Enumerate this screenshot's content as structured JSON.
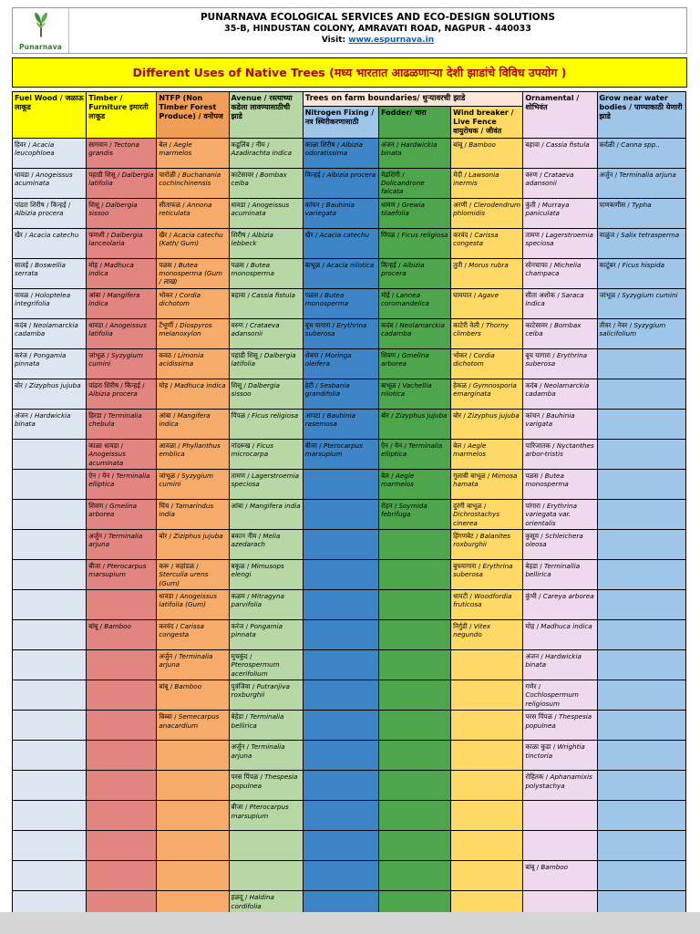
{
  "page": {
    "org_line1": "PUNARNAVA ECOLOGICAL SERVICES AND ECO-DESIGN SOLUTIONS",
    "org_line2": "35-B, HINDUSTAN COLONY, AMRAVATI ROAD, NAGPUR - 440033",
    "visit_label": "Visit: ",
    "visit_url": "www.espurnava.in",
    "logo_text": "Punarnava",
    "title": "Different Uses of Native Trees (मध्य भारतात आढळणाऱ्या देशी झाडांचे विविध उपयोग )"
  },
  "colors": {
    "title_bg": "#ffff00",
    "title_text": "#b00000",
    "link_blue": "#0563c1",
    "logo_green": "#2f7d32",
    "farm_group_bg": "#fbe5d6"
  },
  "table": {
    "farm_group_label": "Trees on farm boundaries/ धुऱ्यावरची झाडे",
    "farm_group_bg": "#fbe5d6",
    "columns": [
      {
        "key": "fuel-wood",
        "label": "Fuel Wood / जळाऊ लाकूड",
        "header_bg": "#ffff00",
        "body_bg": "#dde6f0"
      },
      {
        "key": "timber",
        "label": "Timber / Furniture इमारती लाकूड",
        "header_bg": "#ffff00",
        "body_bg": "#e28580"
      },
      {
        "key": "ntfp",
        "label": "NTFP (Non Timber Forest Produce) / वनोपज",
        "header_bg": "#f09d58",
        "body_bg": "#f6ab6b"
      },
      {
        "key": "avenue",
        "label": "Avenue / रस्त्याच्या कडेला लावण्यासाठीची झाडे",
        "header_bg": "#b7d7a4",
        "body_bg": "#b7d7a4"
      },
      {
        "key": "nitrogen-fixing",
        "label": "Nitrogen Fixing / नत्र स्थिरीकरणासाठी",
        "header_bg": "#9fc5e8",
        "body_bg": "#3d85c6",
        "group": "farm"
      },
      {
        "key": "fodder",
        "label": "Fodder/ चारा",
        "header_bg": "#4da64b",
        "body_bg": "#4da64b",
        "group": "farm"
      },
      {
        "key": "wind-breaker",
        "label": "Wind breaker / Live Fence वायुरोधक / जीवंत",
        "header_bg": "#ffd966",
        "body_bg": "#ffd966",
        "group": "farm"
      },
      {
        "key": "ornamental",
        "label": "Ornamental / शोभिवंत",
        "header_bg": "#efd9ed",
        "body_bg": "#efd9ed"
      },
      {
        "key": "water-bodies",
        "label": "Grow near water bodies / पाण्याकाठी येणारी झाडे",
        "header_bg": "#9fc5e8",
        "body_bg": "#9fc5e8"
      }
    ],
    "rows": [
      [
        [
          "हिवर",
          "Acacia leucophloea"
        ],
        [
          "सागवान",
          "Tectona grandis"
        ],
        [
          "बेल",
          "Aegle marmelos"
        ],
        [
          "कडूलिंब / नीम",
          "Azadirachta indica"
        ],
        [
          "काळा शिरीष",
          "Albizia odoratissima"
        ],
        [
          "अंजन",
          "Hardwickia binata"
        ],
        [
          "बांबू",
          "Bamboo"
        ],
        [
          "बहावा",
          "Cassia fistula"
        ],
        [
          "कर्दळी",
          "Canna spp.."
        ]
      ],
      [
        [
          "धावडा",
          "Anogeissus acuminata"
        ],
        [
          "पहाडी शिसू",
          "Dalbergia latifolia"
        ],
        [
          "चारोळी",
          "Buchanania cochinchinensis"
        ],
        [
          "काटेसावर",
          "Bombax ceiba"
        ],
        [
          "किन्हई",
          "Albizia procera"
        ],
        [
          "मेढशिंगी",
          "Dolicandrone falcata"
        ],
        [
          "मेंदी",
          "Lawsonia inermis"
        ],
        [
          "वरुण",
          "Crataeva adansonii"
        ],
        [
          "अर्जुन",
          "Terminalia arjuna"
        ]
      ],
      [
        [
          "पांढरा शिरीष / किन्हई",
          "Albizia procera"
        ],
        [
          "शिसू",
          "Dalbergia sissoo"
        ],
        [
          "सीताफळ",
          "Annona reticulata"
        ],
        [
          "धावडा",
          "Anogeissus acuminata"
        ],
        [
          "कांचन",
          "Bauhinia variegata"
        ],
        [
          "धामण",
          "Grewia tilaefolia"
        ],
        [
          "अरणी",
          "Clerodendrum phlomidis"
        ],
        [
          "कुंती",
          "Murraya paniculata"
        ],
        [
          "पाणकणीस",
          "Typha"
        ]
      ],
      [
        [
          "खैर",
          "Acacia catechu"
        ],
        [
          "फणशी",
          "Dalbergia lanceolaria"
        ],
        [
          "खैर",
          "Acacia catechu (Kath/ Gum)"
        ],
        [
          "शिरीष",
          "Albizia lebbeck"
        ],
        [
          "खैर",
          "Acacia catechu"
        ],
        [
          "पिंपळ",
          "Ficus religiosa"
        ],
        [
          "करवंद",
          "Carissa congesta"
        ],
        [
          "तामण",
          "Lagerstroemia speciosa"
        ],
        [
          "वाळुंज",
          "Salix tetrasperma"
        ]
      ],
      [
        [
          "सालई",
          "Boswellia serrata"
        ],
        [
          "मोह",
          "Madhuca indica"
        ],
        [
          "पळस",
          "Butea monosperma (Gum / लाख)"
        ],
        [
          "पळस",
          "Butea monosperma"
        ],
        [
          "बाभूळ",
          "Acacia nilotica"
        ],
        [
          "किन्हई",
          "Albizia procera"
        ],
        [
          "तुती",
          "Morus rubra"
        ],
        [
          "सोनचाफा",
          "Michelia champaca"
        ],
        [
          "काटूंबर",
          "Ficus hispida"
        ]
      ],
      [
        [
          "वावळ",
          "Holoptelea integrifolia"
        ],
        [
          "आंबा",
          "Mangifera indica"
        ],
        [
          "भोकर",
          "Cordia dichotom"
        ],
        [
          "बहावा",
          "Cassia fistula"
        ],
        [
          "पळस",
          "Butea monosperma"
        ],
        [
          "मोई",
          "Lannea coromandelica"
        ],
        [
          "घायपात",
          "Agave"
        ],
        [
          "सीता अशोक",
          "Saraca indica"
        ],
        [
          "जांभूळ",
          "Syzygium cumini"
        ]
      ],
      [
        [
          "कदंब",
          "Neolamarckia cadamba"
        ],
        [
          "धावडा",
          "Anogeissus latifolia"
        ],
        [
          "टेंभूर्णी",
          "Diospyros melanoxylon"
        ],
        [
          "वरुण",
          "Crataeva adansonii"
        ],
        [
          "बूच यागारा",
          "Erythrina suberosa"
        ],
        [
          "कदंब",
          "Neolamarckia cadamba"
        ],
        [
          "काटेरी वेली",
          "Thorny climbers"
        ],
        [
          "काटेसावर",
          "Bombax ceiba"
        ],
        [
          "तीवर / नेवर",
          "Syzygium salicifolium"
        ]
      ],
      [
        [
          "करंज",
          "Pongamia pinnata"
        ],
        [
          "जांभूळ",
          "Syzygium cumini"
        ],
        [
          "कवठ",
          "Limonia acidissima"
        ],
        [
          "पहाडी शिसू",
          "Dalbergia latifolia"
        ],
        [
          "शेवगा",
          "Moringa oleifera"
        ],
        [
          "शिवण",
          "Gmelina arborea"
        ],
        [
          "भोकर",
          "Cordia dichotom"
        ],
        [
          "बूच यागारा",
          "Erythrina suberosa"
        ],
        null
      ],
      [
        [
          "बोर",
          "Zizyphus jujuba"
        ],
        [
          "पांढरा शिरीष / किन्हई",
          "Albizia procera"
        ],
        [
          "मोह",
          "Madhuca indica"
        ],
        [
          "शिसू",
          "Dalbergia sissoo"
        ],
        [
          "हेटी",
          "Sesbania grandifolia"
        ],
        [
          "बाभूळ",
          "Vachellia nilotica"
        ],
        [
          "हेकळ",
          "Gymnosporia emarginata"
        ],
        [
          "कदंब",
          "Neolamarckia cadamba"
        ],
        null
      ],
      [
        [
          "अंजन",
          "Hardwickia binata"
        ],
        [
          "हिरडा",
          "Terminalia chebula"
        ],
        [
          "आंबा",
          "Mangifera indica"
        ],
        [
          "पिंपळ",
          "Ficus religiosa"
        ],
        [
          "आपटा",
          "Bauhinia rasemosa"
        ],
        [
          "बोर",
          "Zizyphus jujuba"
        ],
        [
          "बोर",
          "Zizyphus jujuba"
        ],
        [
          "कांचन",
          "Bauhinia varigata"
        ],
        null
      ],
      [
        null,
        [
          "काळा धावडा",
          "Anogeissus acuminata"
        ],
        [
          "आवळा",
          "Phyllanthus emblica"
        ],
        [
          "नांदरूख",
          "Ficus microcarpa"
        ],
        [
          "बीजा",
          "Pterocarpus marsupium"
        ],
        [
          "ऐन / येन",
          "Terminalia elliptica"
        ],
        [
          "बेल",
          "Aegle marmelos"
        ],
        [
          "पारिजातक",
          "Nyctanthes arbor-tristis"
        ],
        null
      ],
      [
        null,
        [
          "ऐन / येन",
          "Terminalia elliptica"
        ],
        [
          "जांभूळ",
          "Syzygium cumini"
        ],
        [
          "तामण",
          "Lagerstroemia speciosa"
        ],
        null,
        [
          "बेल",
          "Aegle marmelos"
        ],
        [
          "गुलाबी बाभूळ",
          "Mimosa hamata"
        ],
        [
          "पळस",
          "Butea monosperma"
        ],
        null
      ],
      [
        null,
        [
          "शिवण",
          "Gmelina arborea"
        ],
        [
          "चिंच",
          "Tamarindus india"
        ],
        [
          "आंबा",
          "Mangifera india"
        ],
        null,
        [
          "रोहन",
          "Soymida febrifuga"
        ],
        [
          "दुरंगी बाभूळ",
          "Dichrostachys cinerea"
        ],
        [
          "पांगारा",
          "Erythrina variegata var. orientalis"
        ],
        null
      ],
      [
        null,
        [
          "अर्जुन",
          "Terminalia arjuna"
        ],
        [
          "बोर",
          "Ziziphus jujuba"
        ],
        [
          "बकान नीम",
          "Melia azedarach"
        ],
        null,
        null,
        [
          "हिंगणबेट",
          "Balanites roxburghii"
        ],
        [
          "कुसूम",
          "Schleichera oleosa"
        ],
        null
      ],
      [
        null,
        [
          "बीजा",
          "Pterocarpus marsupium"
        ],
        [
          "करू / कहांडळ",
          "Sterculia urens (Gum)"
        ],
        [
          "बकूळ",
          "Mimusops elengi"
        ],
        null,
        null,
        [
          "बुचयागारा",
          "Erythrina suberosa"
        ],
        [
          "बेहडा",
          "Terminallia bellirica"
        ],
        null
      ],
      [
        null,
        null,
        [
          "धावडा",
          "Anogeissus latifolia (Gum)"
        ],
        [
          "कळम",
          "Mitragyna parvifolia"
        ],
        null,
        null,
        [
          "धायटी",
          "Woodfordia fruticosa"
        ],
        [
          "कुंभी",
          "Careya arborea"
        ],
        null
      ],
      [
        null,
        [
          "बांबू",
          "Bamboo"
        ],
        [
          "करवंद",
          "Carissa congesta"
        ],
        [
          "करंज",
          "Pongamia pinnata"
        ],
        null,
        null,
        [
          "निर्गुडी",
          "Vitex negundo"
        ],
        [
          "मोह",
          "Madhuca indica"
        ],
        null
      ],
      [
        null,
        null,
        [
          "अर्जुन",
          "Terminalia arjuna"
        ],
        [
          "मुचकुंद",
          "Pterospermum acerifolium"
        ],
        null,
        null,
        null,
        [
          "अंजन",
          "Hardwickia binata"
        ],
        null
      ],
      [
        null,
        null,
        [
          "बांबू",
          "Bamboo"
        ],
        [
          "पुत्रंजिवा",
          "Putranjiva roxburghii"
        ],
        null,
        null,
        null,
        [
          "गणेर",
          "Cochlospermum religiosum"
        ],
        null
      ],
      [
        null,
        null,
        [
          "बिब्बा",
          "Semecarpus anacardium"
        ],
        [
          "बेहेडा",
          "Terminalia bellirica"
        ],
        null,
        null,
        null,
        [
          "परस पिंपळ",
          "Thespesia populnea"
        ],
        null
      ],
      [
        null,
        null,
        null,
        [
          "अर्जुन",
          "Terminalia arjuna"
        ],
        null,
        null,
        null,
        [
          "काळा कुडा",
          "Wrightia tinctoria"
        ],
        null
      ],
      [
        null,
        null,
        null,
        [
          "परस पिंपळ",
          "Thespesia populnea"
        ],
        null,
        null,
        null,
        [
          "रोहितक",
          "Aphanamixis polystachya"
        ],
        null
      ],
      [
        null,
        null,
        null,
        [
          "बीजा",
          "Pterocarpus marsupium"
        ],
        null,
        null,
        null,
        null,
        null
      ],
      [
        null,
        null,
        null,
        null,
        null,
        null,
        null,
        null,
        null
      ],
      [
        null,
        null,
        null,
        null,
        null,
        null,
        null,
        [
          "बांबू",
          "Bamboo"
        ],
        null
      ],
      [
        null,
        null,
        null,
        [
          "हळदू",
          "Haldina cordifolia"
        ],
        null,
        null,
        null,
        null,
        null
      ]
    ]
  }
}
